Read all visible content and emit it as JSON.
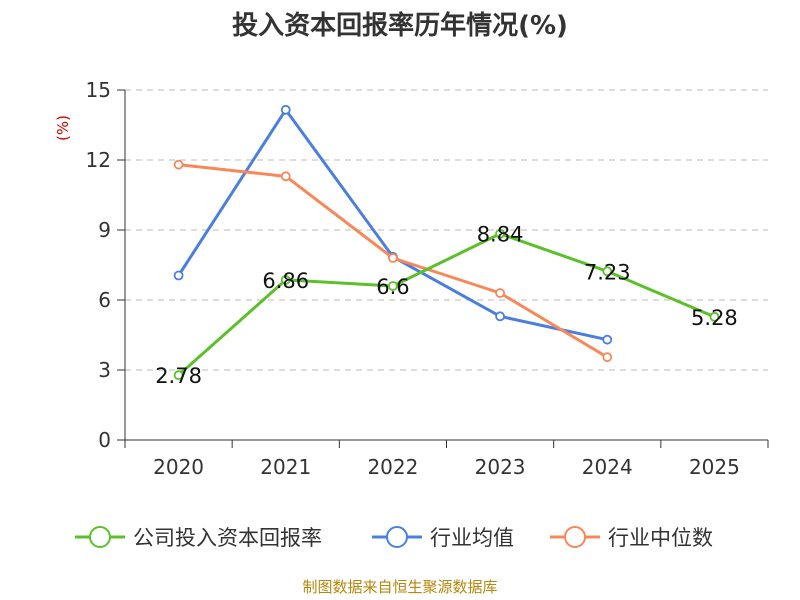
{
  "chart_data": {
    "type": "line",
    "title": "投入资本回报率历年情况(%)",
    "ylabel": "(%)",
    "xlabel": "",
    "categories": [
      "2020",
      "2021",
      "2022",
      "2023",
      "2024",
      "2025"
    ],
    "ylim": [
      0,
      15
    ],
    "yticks": [
      0,
      3,
      6,
      9,
      12,
      15
    ],
    "grid": true,
    "legend_position": "bottom",
    "series": [
      {
        "name": "公司投入资本回报率",
        "color": "#5cc02a",
        "values": [
          2.78,
          6.86,
          6.6,
          8.84,
          7.23,
          5.28
        ],
        "labels": [
          "2.78",
          "6.86",
          "6.6",
          "8.84",
          "7.23",
          "5.28"
        ],
        "show_labels": true
      },
      {
        "name": "行业均值",
        "color": "#4a7fe0",
        "values": [
          7.05,
          14.15,
          7.85,
          5.3,
          4.3,
          null
        ],
        "show_labels": false
      },
      {
        "name": "行业中位数",
        "color": "#f7885a",
        "values": [
          11.8,
          11.3,
          7.8,
          6.3,
          3.55,
          null
        ],
        "show_labels": false
      }
    ],
    "source": "制图数据来自恒生聚源数据库"
  }
}
